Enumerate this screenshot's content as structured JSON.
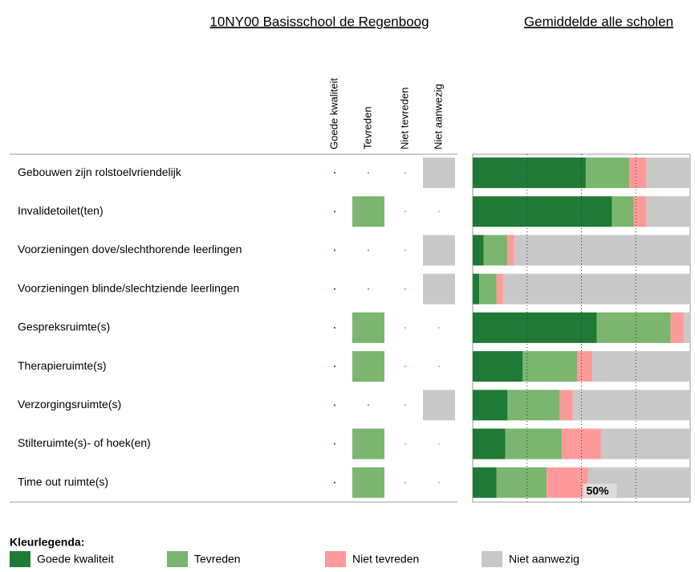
{
  "school_title": "10NY00 Basisschool de Regenboog",
  "average_title": "Gemiddelde alle scholen",
  "columns": [
    "Goede kwaliteit",
    "Tevreden",
    "Niet tevreden",
    "Niet aanwezig"
  ],
  "colors": [
    "#1e7a34",
    "#7bb56f",
    "#ff9a9a",
    "#c8c8c8"
  ],
  "rows": [
    {
      "label": "Gebouwen zijn rolstoelvriendelijk",
      "school_answer": 3,
      "average": [
        52,
        20,
        8,
        20
      ]
    },
    {
      "label": "Invalidetoilet(ten)",
      "school_answer": 1,
      "average": [
        64,
        10,
        6,
        20
      ]
    },
    {
      "label": "Voorzieningen dove/slechthorende leerlingen",
      "school_answer": 3,
      "average": [
        5,
        11,
        3,
        81
      ]
    },
    {
      "label": "Voorzieningen blinde/slechtziende leerlingen",
      "school_answer": 3,
      "average": [
        3,
        8,
        3,
        86
      ]
    },
    {
      "label": "Gespreksruimte(s)",
      "school_answer": 1,
      "average": [
        57,
        34,
        6,
        3
      ]
    },
    {
      "label": "Therapieruimte(s)",
      "school_answer": 1,
      "average": [
        23,
        25,
        7,
        45
      ]
    },
    {
      "label": "Verzorgingsruimte(s)",
      "school_answer": 3,
      "average": [
        16,
        24,
        6,
        54
      ]
    },
    {
      "label": "Stilteruimte(s)- of hoek(en)",
      "school_answer": 1,
      "average": [
        15,
        26,
        18,
        41
      ]
    },
    {
      "label": "Time out ruimte(s)",
      "school_answer": 1,
      "average": [
        11,
        23,
        19,
        47
      ]
    }
  ],
  "xlim": [
    0,
    100
  ],
  "grid": [
    25,
    50,
    75
  ],
  "xticks": [
    {
      "value": 50,
      "label": "50%"
    }
  ],
  "legend_title": "Kleurlegenda:"
}
